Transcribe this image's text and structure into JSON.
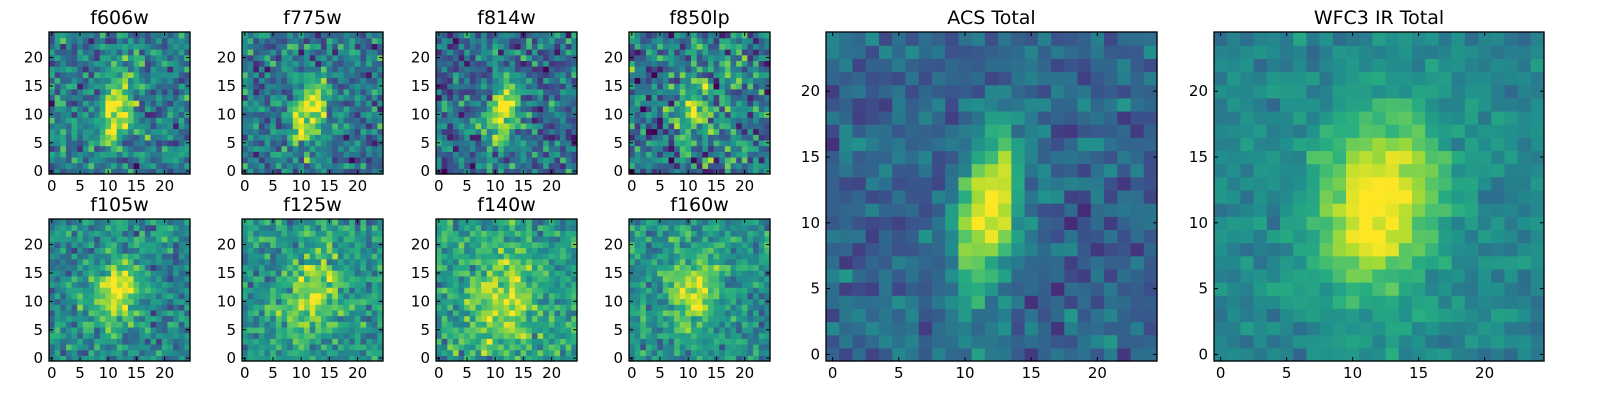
{
  "figure": {
    "colormap": "viridis",
    "colors": {
      "low": "#440154",
      "mid": "#21918c",
      "high": "#fde725"
    }
  },
  "chart_data": [
    {
      "type": "heatmap",
      "title": "f606w",
      "grid_size": 25,
      "x_ticks": [
        0,
        5,
        10,
        15,
        20
      ],
      "y_ticks": [
        0,
        5,
        10,
        15,
        20
      ],
      "xlim": [
        0,
        24
      ],
      "ylim": [
        0,
        24
      ],
      "source": {
        "cx": 11.5,
        "cy": 11.5,
        "sx": 2.0,
        "sy": 4.6,
        "rot": 0.15,
        "amp": 0.55,
        "noise": 0.3,
        "base": 0.42,
        "seed": 11
      }
    },
    {
      "type": "heatmap",
      "title": "f775w",
      "grid_size": 25,
      "x_ticks": [
        0,
        5,
        10,
        15,
        20
      ],
      "y_ticks": [
        0,
        5,
        10,
        15,
        20
      ],
      "xlim": [
        0,
        24
      ],
      "ylim": [
        0,
        24
      ],
      "source": {
        "cx": 11.5,
        "cy": 10.5,
        "sx": 2.0,
        "sy": 4.4,
        "rot": 0.15,
        "amp": 0.58,
        "noise": 0.3,
        "base": 0.4,
        "seed": 23
      }
    },
    {
      "type": "heatmap",
      "title": "f814w",
      "grid_size": 25,
      "x_ticks": [
        0,
        5,
        10,
        15,
        20
      ],
      "y_ticks": [
        0,
        5,
        10,
        15,
        20
      ],
      "xlim": [
        0,
        24
      ],
      "ylim": [
        0,
        24
      ],
      "source": {
        "cx": 11.5,
        "cy": 10.5,
        "sx": 1.9,
        "sy": 4.4,
        "rot": 0.15,
        "amp": 0.62,
        "noise": 0.32,
        "base": 0.36,
        "seed": 37
      }
    },
    {
      "type": "heatmap",
      "title": "f850lp",
      "grid_size": 25,
      "x_ticks": [
        0,
        5,
        10,
        15,
        20
      ],
      "y_ticks": [
        0,
        5,
        10,
        15,
        20
      ],
      "xlim": [
        0,
        24
      ],
      "ylim": [
        0,
        24
      ],
      "source": {
        "cx": 11.5,
        "cy": 11.0,
        "sx": 2.2,
        "sy": 3.2,
        "rot": 0.1,
        "amp": 0.45,
        "noise": 0.38,
        "base": 0.42,
        "seed": 53
      }
    },
    {
      "type": "heatmap",
      "title": "f105w",
      "grid_size": 25,
      "x_ticks": [
        0,
        5,
        10,
        15,
        20
      ],
      "y_ticks": [
        0,
        5,
        10,
        15,
        20
      ],
      "xlim": [
        0,
        24
      ],
      "ylim": [
        0,
        24
      ],
      "source": {
        "cx": 11.5,
        "cy": 12.0,
        "sx": 2.8,
        "sy": 4.6,
        "rot": 0.2,
        "amp": 0.5,
        "noise": 0.24,
        "base": 0.46,
        "seed": 71
      }
    },
    {
      "type": "heatmap",
      "title": "f125w",
      "grid_size": 25,
      "x_ticks": [
        0,
        5,
        10,
        15,
        20
      ],
      "y_ticks": [
        0,
        5,
        10,
        15,
        20
      ],
      "xlim": [
        0,
        24
      ],
      "ylim": [
        0,
        24
      ],
      "source": {
        "cx": 12.0,
        "cy": 11.0,
        "sx": 3.2,
        "sy": 4.8,
        "rot": 0.2,
        "amp": 0.4,
        "noise": 0.24,
        "base": 0.52,
        "seed": 89
      }
    },
    {
      "type": "heatmap",
      "title": "f140w",
      "grid_size": 25,
      "x_ticks": [
        0,
        5,
        10,
        15,
        20
      ],
      "y_ticks": [
        0,
        5,
        10,
        15,
        20
      ],
      "xlim": [
        0,
        24
      ],
      "ylim": [
        0,
        24
      ],
      "source": {
        "cx": 11.5,
        "cy": 10.0,
        "sx": 3.8,
        "sy": 5.2,
        "rot": 0.2,
        "amp": 0.34,
        "noise": 0.24,
        "base": 0.56,
        "seed": 97
      }
    },
    {
      "type": "heatmap",
      "title": "f160w",
      "grid_size": 25,
      "x_ticks": [
        0,
        5,
        10,
        15,
        20
      ],
      "y_ticks": [
        0,
        5,
        10,
        15,
        20
      ],
      "xlim": [
        0,
        24
      ],
      "ylim": [
        0,
        24
      ],
      "source": {
        "cx": 11.0,
        "cy": 12.0,
        "sx": 3.0,
        "sy": 4.8,
        "rot": 0.25,
        "amp": 0.42,
        "noise": 0.22,
        "base": 0.5,
        "seed": 131
      }
    },
    {
      "type": "heatmap",
      "title": "ACS Total",
      "grid_size": 25,
      "x_ticks": [
        0,
        5,
        10,
        15,
        20
      ],
      "y_ticks": [
        0,
        5,
        10,
        15,
        20
      ],
      "xlim": [
        0,
        24
      ],
      "ylim": [
        0,
        24
      ],
      "source": {
        "cx": 11.8,
        "cy": 11.0,
        "sx": 1.6,
        "sy": 4.4,
        "rot": 0.12,
        "amp": 0.7,
        "noise": 0.16,
        "base": 0.33,
        "seed": 151
      }
    },
    {
      "type": "heatmap",
      "title": "WFC3 IR Total",
      "grid_size": 25,
      "x_ticks": [
        0,
        5,
        10,
        15,
        20
      ],
      "y_ticks": [
        0,
        5,
        10,
        15,
        20
      ],
      "xlim": [
        0,
        24
      ],
      "ylim": [
        0,
        24
      ],
      "source": {
        "cx": 12.0,
        "cy": 11.5,
        "sx": 3.2,
        "sy": 5.0,
        "rot": 0.25,
        "amp": 0.58,
        "noise": 0.11,
        "base": 0.46,
        "seed": 173
      }
    }
  ]
}
